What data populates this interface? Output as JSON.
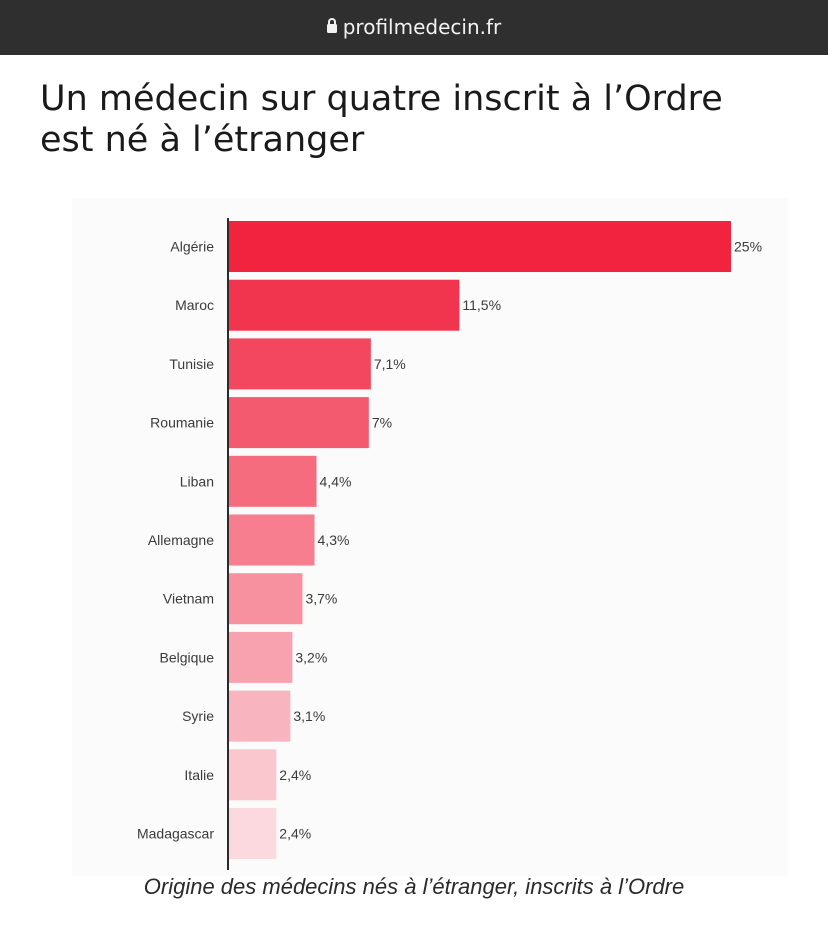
{
  "browser": {
    "url": "profilmedecin.fr"
  },
  "article": {
    "headline_line1": "Un médecin sur quatre inscrit à l’Ordre",
    "headline_line2": "est né à l’étranger"
  },
  "colors": {
    "bar_darkest": "#f1233f",
    "bar_lightest": "#fbd9df",
    "axis": "#2b2b2b"
  },
  "chart_data": {
    "type": "bar",
    "orientation": "horizontal",
    "categories": [
      "Algérie",
      "Maroc",
      "Tunisie",
      "Roumanie",
      "Liban",
      "Allemagne",
      "Vietnam",
      "Belgique",
      "Syrie",
      "Italie",
      "Madagascar"
    ],
    "values": [
      25,
      11.5,
      7.1,
      7,
      4.4,
      4.3,
      3.7,
      3.2,
      3.1,
      2.4,
      2.4
    ],
    "value_labels": [
      "25%",
      "11,5%",
      "7,1%",
      "7%",
      "4,4%",
      "4,3%",
      "3,7%",
      "3,2%",
      "3,1%",
      "2,4%",
      "2,4%"
    ],
    "unit": "%",
    "xlim": [
      0,
      25
    ],
    "grid": false,
    "caption": "Origine des médecins nés à l’étranger, inscrits à l’Ordre"
  }
}
